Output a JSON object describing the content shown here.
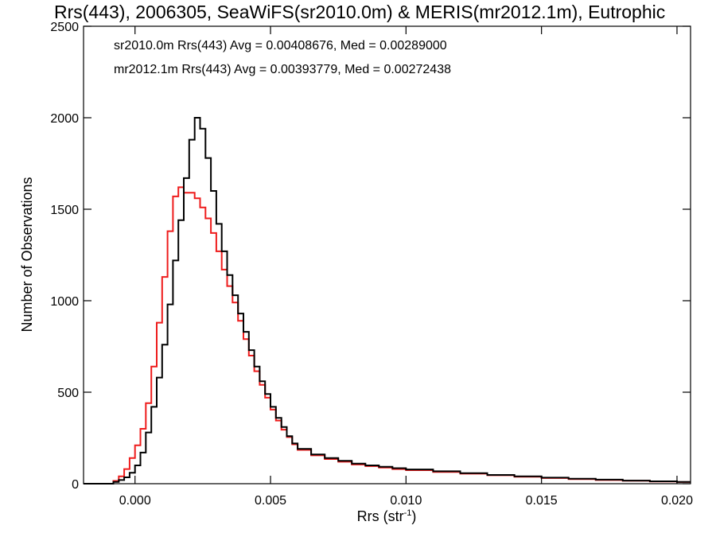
{
  "chart_data": {
    "type": "histogram",
    "title": "Rrs(443), 2006305, SeaWiFS(sr2010.0m) & MERIS(mr2012.1m), Eutrophic",
    "xlabel": "Rrs (str",
    "xlabel_sup": "-1",
    "xlabel_tail": ")",
    "ylabel": "Number of Observations",
    "xlim": [
      -0.0019,
      0.0205
    ],
    "ylim": [
      0,
      2500
    ],
    "xticks": [
      0.0,
      0.005,
      0.01,
      0.015,
      0.02
    ],
    "xtick_labels": [
      "0.000",
      "0.005",
      "0.010",
      "0.015",
      "0.020"
    ],
    "yticks": [
      0,
      500,
      1000,
      1500,
      2000,
      2500
    ],
    "ytick_labels": [
      "0",
      "500",
      "1000",
      "1500",
      "2000",
      "2500"
    ],
    "annotations": [
      {
        "text": "sr2010.0m Rrs(443) Avg = 0.00408676, Med = 0.00289000",
        "color": "#000000"
      },
      {
        "text": "mr2012.1m Rrs(443) Avg = 0.00393779, Med = 0.00272438",
        "color": "#ee1c1c"
      }
    ],
    "series": [
      {
        "name": "sr2010.0m",
        "color": "#000000",
        "points": [
          [
            -0.0019,
            0
          ],
          [
            -0.001,
            0
          ],
          [
            -0.0008,
            10
          ],
          [
            -0.0006,
            20
          ],
          [
            -0.0004,
            35
          ],
          [
            -0.0002,
            60
          ],
          [
            0.0,
            100
          ],
          [
            0.0002,
            170
          ],
          [
            0.0004,
            280
          ],
          [
            0.0006,
            420
          ],
          [
            0.0008,
            580
          ],
          [
            0.001,
            760
          ],
          [
            0.0012,
            980
          ],
          [
            0.0014,
            1220
          ],
          [
            0.0016,
            1440
          ],
          [
            0.0018,
            1670
          ],
          [
            0.002,
            1880
          ],
          [
            0.0022,
            2000
          ],
          [
            0.0024,
            1940
          ],
          [
            0.0026,
            1780
          ],
          [
            0.0028,
            1600
          ],
          [
            0.003,
            1420
          ],
          [
            0.0032,
            1270
          ],
          [
            0.0034,
            1140
          ],
          [
            0.0036,
            1030
          ],
          [
            0.0038,
            930
          ],
          [
            0.004,
            830
          ],
          [
            0.0042,
            730
          ],
          [
            0.0044,
            640
          ],
          [
            0.0046,
            560
          ],
          [
            0.0048,
            490
          ],
          [
            0.005,
            420
          ],
          [
            0.0052,
            360
          ],
          [
            0.0054,
            310
          ],
          [
            0.0056,
            260
          ],
          [
            0.0058,
            220
          ],
          [
            0.006,
            190
          ],
          [
            0.0065,
            160
          ],
          [
            0.007,
            140
          ],
          [
            0.0075,
            125
          ],
          [
            0.008,
            110
          ],
          [
            0.0085,
            100
          ],
          [
            0.009,
            92
          ],
          [
            0.0095,
            85
          ],
          [
            0.01,
            78
          ],
          [
            0.011,
            68
          ],
          [
            0.012,
            58
          ],
          [
            0.013,
            48
          ],
          [
            0.014,
            40
          ],
          [
            0.015,
            33
          ],
          [
            0.016,
            27
          ],
          [
            0.017,
            22
          ],
          [
            0.018,
            17
          ],
          [
            0.019,
            13
          ],
          [
            0.02,
            10
          ],
          [
            0.0205,
            9
          ]
        ]
      },
      {
        "name": "mr2012.1m",
        "color": "#ee1c1c",
        "points": [
          [
            -0.0019,
            0
          ],
          [
            -0.001,
            0
          ],
          [
            -0.0008,
            15
          ],
          [
            -0.0006,
            40
          ],
          [
            -0.0004,
            80
          ],
          [
            -0.0002,
            140
          ],
          [
            0.0,
            210
          ],
          [
            0.0002,
            300
          ],
          [
            0.0004,
            440
          ],
          [
            0.0006,
            640
          ],
          [
            0.0008,
            880
          ],
          [
            0.001,
            1130
          ],
          [
            0.0012,
            1380
          ],
          [
            0.0014,
            1570
          ],
          [
            0.0016,
            1620
          ],
          [
            0.0018,
            1590
          ],
          [
            0.002,
            1590
          ],
          [
            0.0022,
            1560
          ],
          [
            0.0024,
            1510
          ],
          [
            0.0026,
            1450
          ],
          [
            0.0028,
            1370
          ],
          [
            0.003,
            1270
          ],
          [
            0.0032,
            1170
          ],
          [
            0.0034,
            1080
          ],
          [
            0.0036,
            990
          ],
          [
            0.0038,
            890
          ],
          [
            0.004,
            790
          ],
          [
            0.0042,
            700
          ],
          [
            0.0044,
            615
          ],
          [
            0.0046,
            540
          ],
          [
            0.0048,
            470
          ],
          [
            0.005,
            405
          ],
          [
            0.0052,
            345
          ],
          [
            0.0054,
            295
          ],
          [
            0.0056,
            255
          ],
          [
            0.0058,
            215
          ],
          [
            0.006,
            185
          ],
          [
            0.0065,
            155
          ],
          [
            0.007,
            135
          ],
          [
            0.0075,
            120
          ],
          [
            0.008,
            105
          ],
          [
            0.0085,
            96
          ],
          [
            0.009,
            88
          ],
          [
            0.0095,
            80
          ],
          [
            0.01,
            74
          ],
          [
            0.011,
            64
          ],
          [
            0.012,
            55
          ],
          [
            0.013,
            46
          ],
          [
            0.014,
            38
          ],
          [
            0.015,
            31
          ],
          [
            0.016,
            25
          ],
          [
            0.017,
            20
          ],
          [
            0.018,
            16
          ],
          [
            0.019,
            12
          ],
          [
            0.02,
            9
          ],
          [
            0.0205,
            8
          ]
        ]
      }
    ]
  }
}
